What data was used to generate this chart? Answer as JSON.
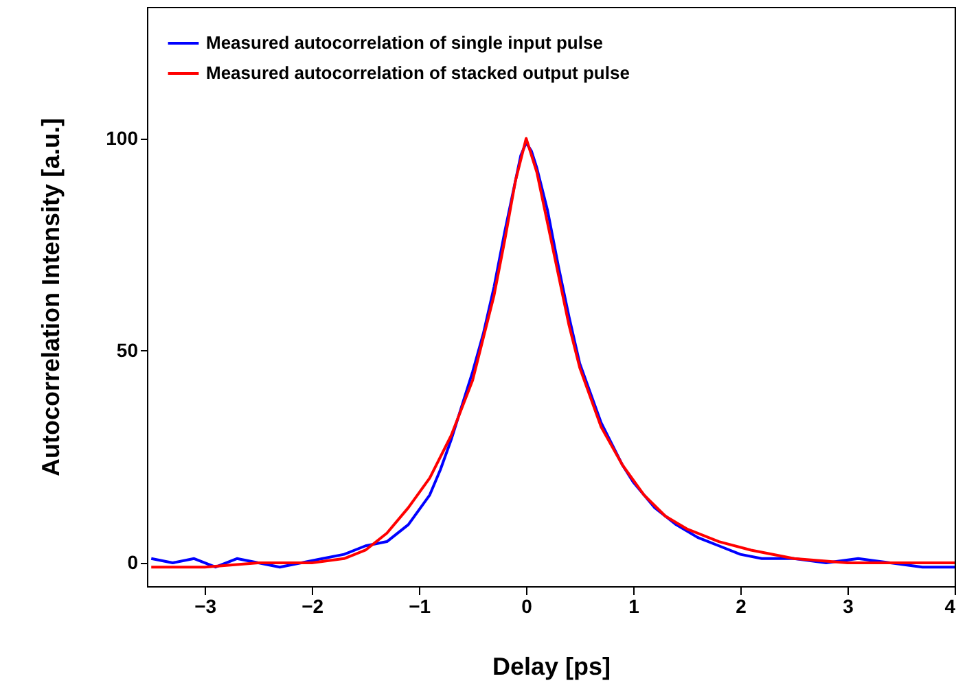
{
  "chart_data": {
    "type": "line",
    "xlabel": "Delay   [ps]",
    "ylabel": "Autocorrelation Intensity  [a.u.]",
    "xlim": [
      -3.54,
      4
    ],
    "xticks": [
      -3,
      -2,
      -1,
      0,
      1,
      2,
      3,
      4
    ],
    "ylim": [
      -5.5,
      131
    ],
    "yticks": [
      0,
      50,
      100
    ],
    "grid": false,
    "legend": "top left",
    "line_style": "solid",
    "marker": "none",
    "series": [
      {
        "name": "Measured autocorrelation of single input pulse",
        "color": "#0000ff",
        "x": [
          -3.5,
          -3.3,
          -3.1,
          -2.9,
          -2.7,
          -2.5,
          -2.3,
          -2.1,
          -1.9,
          -1.7,
          -1.5,
          -1.3,
          -1.1,
          -0.9,
          -0.8,
          -0.7,
          -0.6,
          -0.5,
          -0.4,
          -0.3,
          -0.2,
          -0.1,
          -0.05,
          0,
          0.05,
          0.1,
          0.2,
          0.3,
          0.4,
          0.5,
          0.6,
          0.7,
          0.8,
          0.9,
          1.0,
          1.2,
          1.4,
          1.6,
          1.8,
          2.0,
          2.2,
          2.5,
          2.8,
          3.1,
          3.4,
          3.7,
          4.0
        ],
        "values": [
          1,
          0,
          1,
          -1,
          1,
          0,
          -1,
          0,
          1,
          2,
          4,
          5,
          9,
          16,
          22,
          29,
          37,
          45,
          54,
          65,
          78,
          90,
          96,
          99,
          97,
          93,
          83,
          70,
          58,
          47,
          40,
          33,
          28,
          23,
          19,
          13,
          9,
          6,
          4,
          2,
          1,
          1,
          0,
          1,
          0,
          -1,
          -1
        ]
      },
      {
        "name": "Measured autocorrelation of stacked output pulse",
        "color": "#ff0000",
        "x": [
          -3.5,
          -3,
          -2.5,
          -2,
          -1.7,
          -1.5,
          -1.3,
          -1.1,
          -0.9,
          -0.7,
          -0.5,
          -0.3,
          -0.2,
          -0.1,
          0,
          0.1,
          0.2,
          0.3,
          0.4,
          0.5,
          0.7,
          0.9,
          1.1,
          1.3,
          1.5,
          1.8,
          2.1,
          2.5,
          3,
          3.5,
          4
        ],
        "values": [
          -1,
          -1,
          0,
          0,
          1,
          3,
          7,
          13,
          20,
          30,
          43,
          63,
          76,
          90,
          100,
          92,
          80,
          68,
          56,
          46,
          32,
          23,
          16,
          11,
          8,
          5,
          3,
          1,
          0,
          0,
          0
        ]
      }
    ]
  }
}
